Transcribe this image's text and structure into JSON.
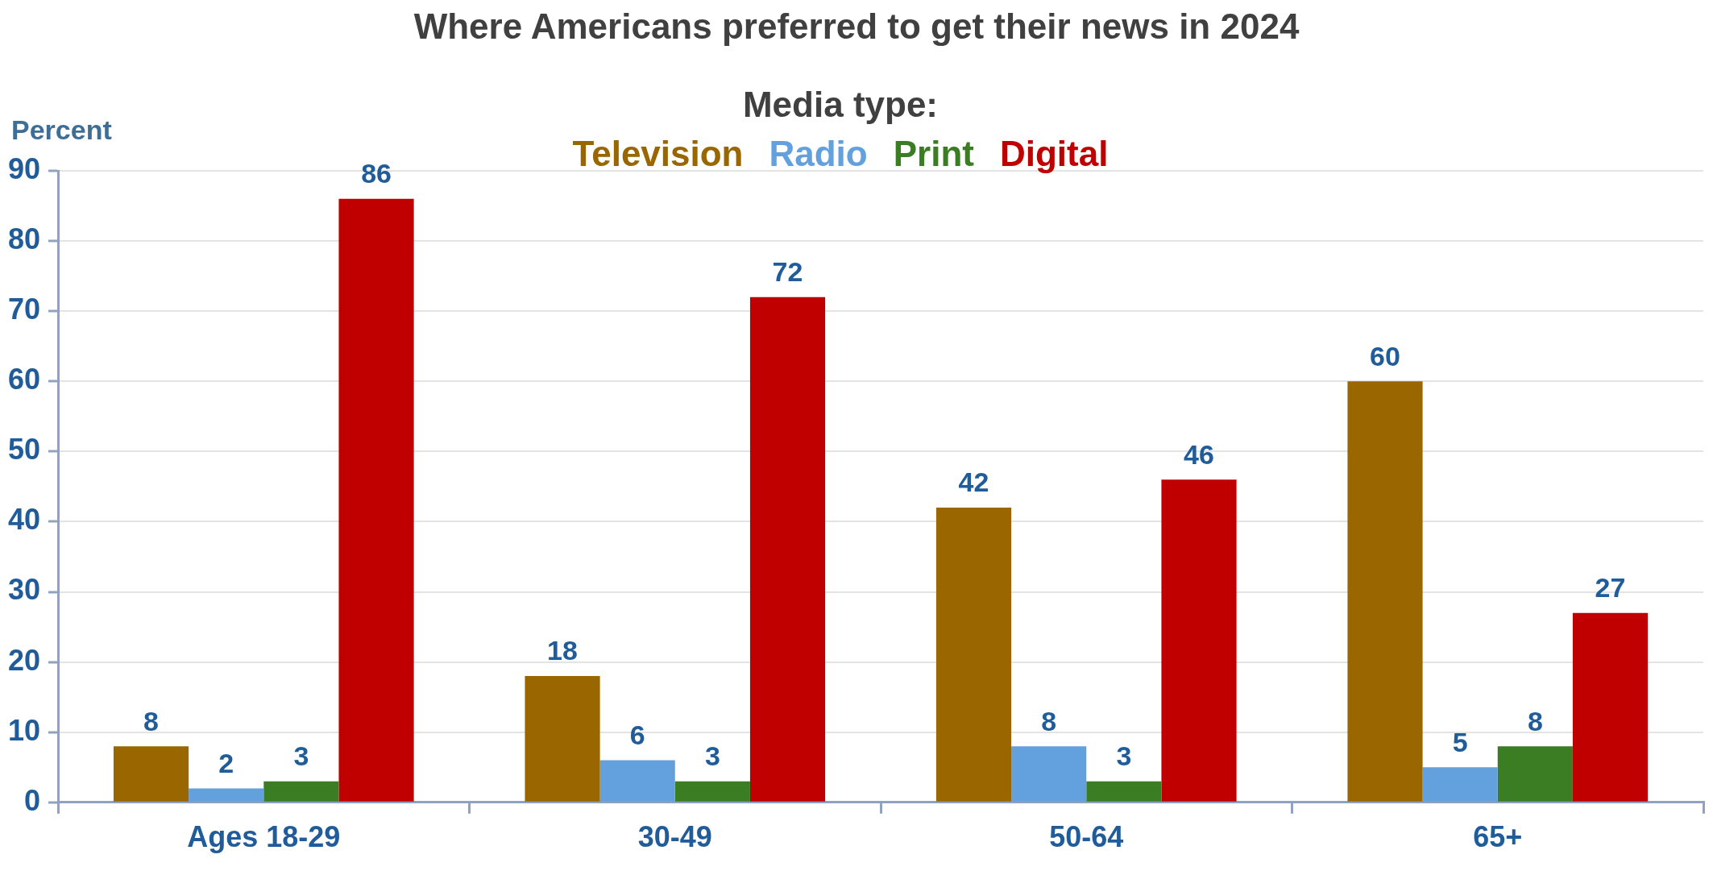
{
  "chart_data": {
    "type": "bar",
    "title": "Where Americans preferred to get their news in 2024",
    "ylabel": "Percent",
    "legend_title": "Media type:",
    "legend": "top",
    "categories": [
      "Ages 18-29",
      "30-49",
      "50-64",
      "65+"
    ],
    "series": [
      {
        "name": "Television",
        "color": "#996600",
        "values": [
          8,
          18,
          42,
          60
        ]
      },
      {
        "name": "Radio",
        "color": "#63a1de",
        "values": [
          2,
          6,
          8,
          5
        ]
      },
      {
        "name": "Print",
        "color": "#3a7d22",
        "values": [
          3,
          3,
          3,
          8
        ]
      },
      {
        "name": "Digital",
        "color": "#c00000",
        "values": [
          86,
          72,
          46,
          27
        ]
      }
    ],
    "ylim": [
      0,
      90
    ],
    "yticks": [
      0,
      10,
      20,
      30,
      40,
      50,
      60,
      70,
      80,
      90
    ],
    "grid": "y",
    "data_labels": true
  }
}
